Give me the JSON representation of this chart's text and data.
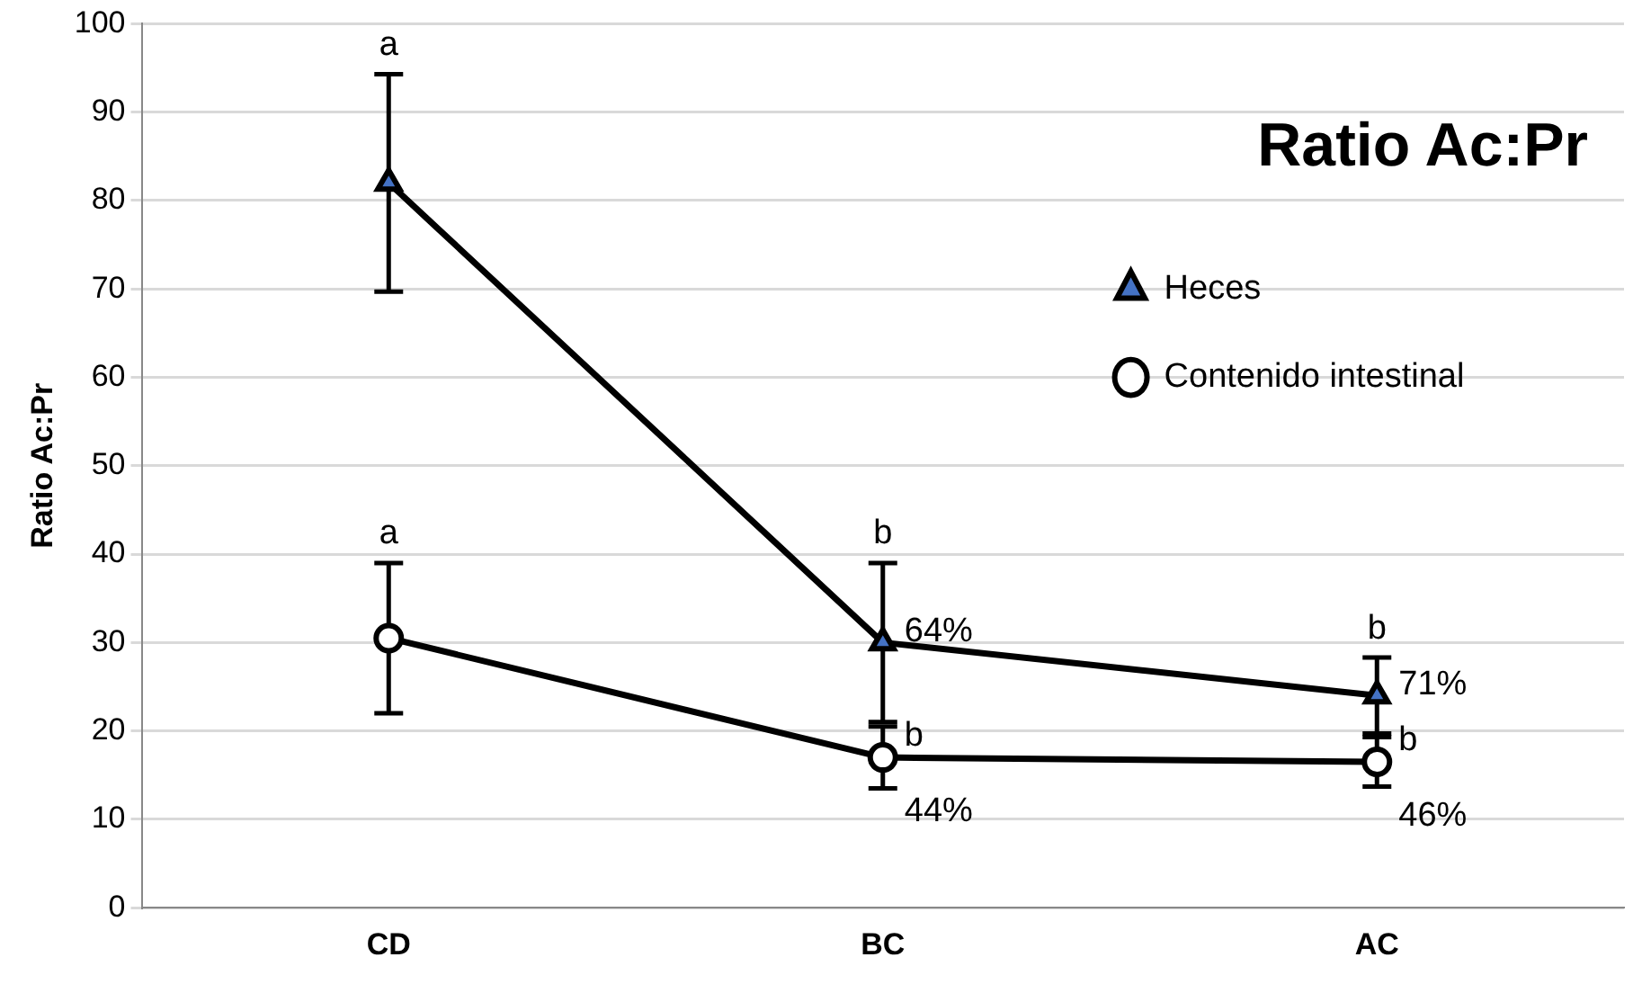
{
  "chart_data": {
    "type": "line",
    "title": "Ratio Ac:Pr",
    "ylabel": "Ratio Ac:Pr",
    "categories": [
      "CD",
      "BC",
      "AC"
    ],
    "series": [
      {
        "name": "Heces",
        "color": "#000000",
        "marker": "triangle",
        "values": [
          82,
          30,
          24
        ],
        "errors": [
          12.3,
          9,
          4.3
        ]
      },
      {
        "name": "Contenido intestinal",
        "color": "#000000",
        "marker": "circle",
        "values": [
          30.5,
          17,
          16.5
        ],
        "errors": [
          8.5,
          3.5,
          2.8
        ]
      }
    ],
    "ylim": [
      0,
      100
    ],
    "yticks": [
      0,
      10,
      20,
      30,
      40,
      50,
      60,
      70,
      80,
      90,
      100
    ],
    "grid": "y",
    "legend": "right",
    "annotations": [
      {
        "text": "a",
        "x": "CD",
        "y": 94.3
      },
      {
        "text": "a",
        "x": "CD",
        "y": 39
      },
      {
        "text": "b",
        "x": "BC",
        "y": 39
      },
      {
        "text": "64%",
        "x": "BC",
        "y": 30
      },
      {
        "text": "b",
        "x": "BC",
        "y": 17
      },
      {
        "text": "44%",
        "x": "BC",
        "y": 17
      },
      {
        "text": "b",
        "x": "AC",
        "y": 28.3
      },
      {
        "text": "71%",
        "x": "AC",
        "y": 24
      },
      {
        "text": "b",
        "x": "AC",
        "y": 16.5
      },
      {
        "text": "46%",
        "x": "AC",
        "y": 16.5
      }
    ]
  }
}
